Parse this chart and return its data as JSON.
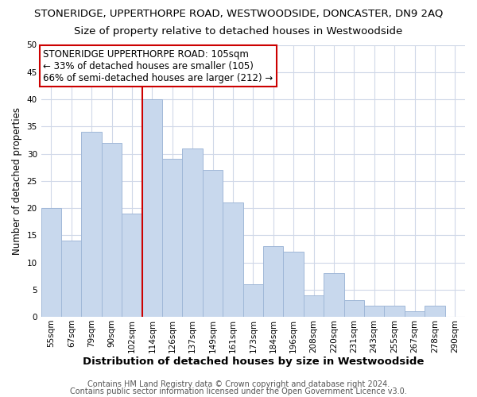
{
  "title": "STONERIDGE, UPPERTHORPE ROAD, WESTWOODSIDE, DONCASTER, DN9 2AQ",
  "subtitle": "Size of property relative to detached houses in Westwoodside",
  "xlabel": "Distribution of detached houses by size in Westwoodside",
  "ylabel": "Number of detached properties",
  "bar_labels": [
    "55sqm",
    "67sqm",
    "79sqm",
    "90sqm",
    "102sqm",
    "114sqm",
    "126sqm",
    "137sqm",
    "149sqm",
    "161sqm",
    "173sqm",
    "184sqm",
    "196sqm",
    "208sqm",
    "220sqm",
    "231sqm",
    "243sqm",
    "255sqm",
    "267sqm",
    "278sqm",
    "290sqm"
  ],
  "bar_values": [
    20,
    14,
    34,
    32,
    19,
    40,
    29,
    31,
    27,
    21,
    6,
    13,
    12,
    4,
    8,
    3,
    2,
    2,
    1,
    2,
    0
  ],
  "bar_color": "#c8d8ed",
  "bar_edge_color": "#a0b8d8",
  "vline_x_index": 4,
  "vline_color": "#cc0000",
  "annotation_lines": [
    "STONERIDGE UPPERTHORPE ROAD: 105sqm",
    "← 33% of detached houses are smaller (105)",
    "66% of semi-detached houses are larger (212) →"
  ],
  "annotation_box_color": "#ffffff",
  "annotation_box_edge": "#cc0000",
  "ylim": [
    0,
    50
  ],
  "yticks": [
    0,
    5,
    10,
    15,
    20,
    25,
    30,
    35,
    40,
    45,
    50
  ],
  "footer1": "Contains HM Land Registry data © Crown copyright and database right 2024.",
  "footer2": "Contains public sector information licensed under the Open Government Licence v3.0.",
  "background_color": "#ffffff",
  "grid_color": "#d0d8e8",
  "title_fontsize": 9.5,
  "subtitle_fontsize": 9.5,
  "xlabel_fontsize": 9.5,
  "ylabel_fontsize": 8.5,
  "tick_fontsize": 7.5,
  "annotation_fontsize": 8.5,
  "footer_fontsize": 7.0
}
